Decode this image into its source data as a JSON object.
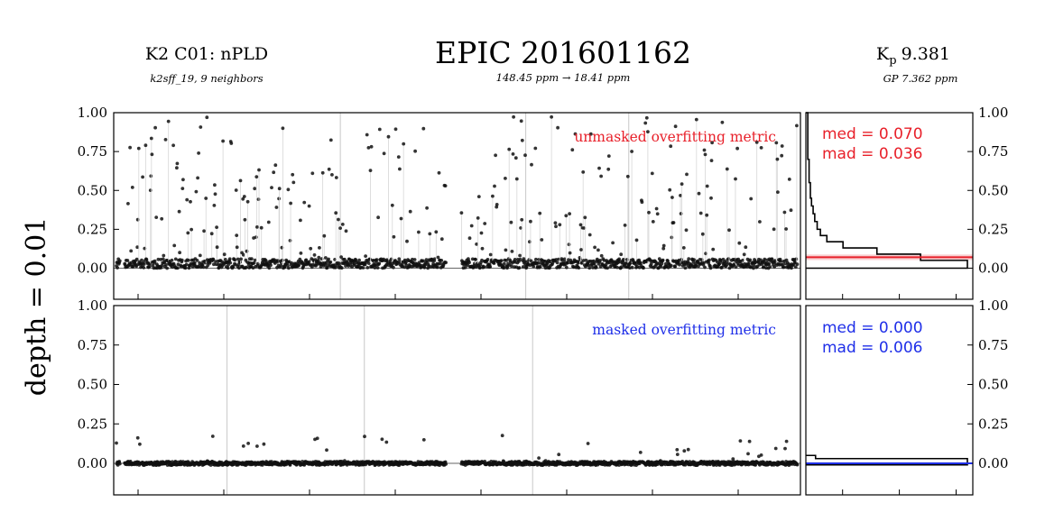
{
  "header": {
    "left_title": "K2 C01: nPLD",
    "left_subtitle": "k2sff_19, 9 neighbors",
    "center_title": "EPIC 201601162",
    "center_subtitle": "148.45 ppm → 18.41 ppm",
    "right_title": "K",
    "right_title_sub": "p",
    "right_title_value": "9.381",
    "right_subtitle": "GP 7.362 ppm"
  },
  "side_label": "depth = 0.01",
  "colors": {
    "unmasked": "#e8202a",
    "masked": "#1f2fe8",
    "points": "#111111",
    "band_fill": "#f6c5c8"
  },
  "chart_data": [
    {
      "type": "scatter",
      "title": "unmasked overfitting metric",
      "ylim": [
        -0.2,
        1.0
      ],
      "y_ticks": [
        "1.00",
        "0.75",
        "0.50",
        "0.25",
        "0.00"
      ],
      "y_tick_values": [
        1.0,
        0.75,
        0.5,
        0.25,
        0.0
      ],
      "x_ticks_count": 8,
      "gap": [
        0.484,
        0.506
      ],
      "baseline": 0.03,
      "spread": 0.03,
      "spike_rate": 0.22,
      "spike_max": 0.95,
      "highlights": [
        0.33,
        0.6,
        0.75
      ],
      "seed": 7
    },
    {
      "type": "scatter",
      "title": "masked overfitting metric",
      "ylim": [
        -0.2,
        1.0
      ],
      "y_ticks": [
        "1.00",
        "0.75",
        "0.50",
        "0.25",
        "0.00"
      ],
      "y_tick_values": [
        1.0,
        0.75,
        0.5,
        0.25,
        0.0
      ],
      "x_ticks_count": 8,
      "gap": [
        0.484,
        0.506
      ],
      "baseline": 0.0,
      "spread": 0.012,
      "spike_rate": 0.03,
      "spike_max": 0.18,
      "highlights": [
        0.165,
        0.365,
        0.61
      ],
      "seed": 19
    },
    {
      "type": "histogram",
      "stat_lines": [
        "med = 0.070",
        "mad = 0.036"
      ],
      "median": 0.07,
      "mad": 0.036,
      "ylim": [
        -0.2,
        1.0
      ],
      "y_ticks": [
        "1.00",
        "0.75",
        "0.50",
        "0.25",
        "0.00"
      ],
      "y_tick_values": [
        1.0,
        0.75,
        0.5,
        0.25,
        0.0
      ],
      "bins": [
        {
          "y0": 0.0,
          "y1": 0.05,
          "w": 1.0
        },
        {
          "y0": 0.05,
          "y1": 0.09,
          "w": 0.71
        },
        {
          "y0": 0.09,
          "y1": 0.13,
          "w": 0.44
        },
        {
          "y0": 0.13,
          "y1": 0.17,
          "w": 0.23
        },
        {
          "y0": 0.17,
          "y1": 0.21,
          "w": 0.13
        },
        {
          "y0": 0.21,
          "y1": 0.25,
          "w": 0.09
        },
        {
          "y0": 0.25,
          "y1": 0.3,
          "w": 0.07
        },
        {
          "y0": 0.3,
          "y1": 0.35,
          "w": 0.055
        },
        {
          "y0": 0.35,
          "y1": 0.4,
          "w": 0.045
        },
        {
          "y0": 0.4,
          "y1": 0.45,
          "w": 0.035
        },
        {
          "y0": 0.45,
          "y1": 0.55,
          "w": 0.028
        },
        {
          "y0": 0.55,
          "y1": 0.7,
          "w": 0.02
        },
        {
          "y0": 0.7,
          "y1": 1.0,
          "w": 0.012
        }
      ]
    },
    {
      "type": "histogram",
      "stat_lines": [
        "med = 0.000",
        "mad = 0.006"
      ],
      "median": 0.0,
      "mad": 0.006,
      "ylim": [
        -0.2,
        1.0
      ],
      "y_ticks": [
        "1.00",
        "0.75",
        "0.50",
        "0.25",
        "0.00"
      ],
      "y_tick_values": [
        1.0,
        0.75,
        0.5,
        0.25,
        0.0
      ],
      "bins": [
        {
          "y0": -0.01,
          "y1": 0.03,
          "w": 1.0
        },
        {
          "y0": 0.03,
          "y1": 0.05,
          "w": 0.06
        }
      ]
    }
  ]
}
